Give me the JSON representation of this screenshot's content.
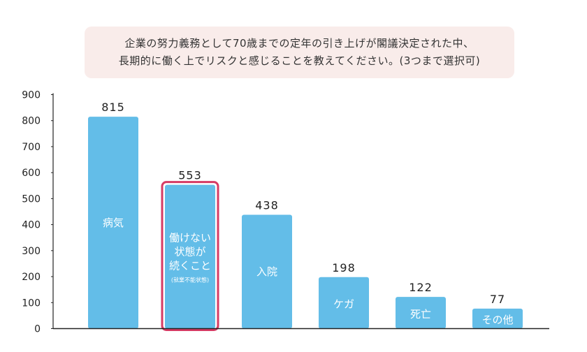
{
  "title_lines": [
    "企業の努力義務として70歳までの定年の引き上げが閣議決定された中、",
    "長期的に働く上でリスクと感じることを教えてください。(3つまで選択可)"
  ],
  "colors": {
    "bar": "#63bde8",
    "highlight": "#d63b64",
    "title_bg": "#f9ecea",
    "axis": "#222222"
  },
  "chart_data": {
    "type": "bar",
    "title": "企業の努力義務として70歳までの定年の引き上げが閣議決定された中、長期的に働く上でリスクと感じることを教えてください。(3つまで選択可)",
    "categories": [
      "病気",
      "働けない状態が続くこと(就業不能状態)",
      "入院",
      "ケガ",
      "死亡",
      "その他"
    ],
    "category_label_lines": [
      [
        "病気"
      ],
      [
        "働けない",
        "状態が",
        "続くこと"
      ],
      [
        "入院"
      ],
      [
        "ケガ"
      ],
      [
        "死亡"
      ],
      [
        "その他"
      ]
    ],
    "category_sublabels": [
      "",
      "(就業不能状態)",
      "",
      "",
      "",
      ""
    ],
    "values": [
      815,
      553,
      438,
      198,
      122,
      77
    ],
    "highlight_index": 1,
    "ylim": [
      0,
      900
    ],
    "yticks": [
      0,
      100,
      200,
      300,
      400,
      500,
      600,
      700,
      800,
      900
    ],
    "xlabel": "",
    "ylabel": "",
    "grid": false,
    "legend": "none"
  }
}
